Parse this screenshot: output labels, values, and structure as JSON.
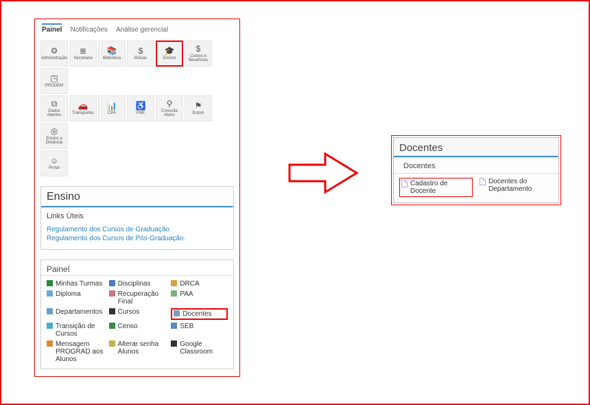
{
  "tabs": {
    "painel": "Painel",
    "notificacoes": "Notificações",
    "analise": "Análise gerencial"
  },
  "toolbar": {
    "row1": [
      {
        "label": "Administração",
        "glyph": "⚙"
      },
      {
        "label": "Secretaria",
        "glyph": "≣"
      },
      {
        "label": "Biblioteca",
        "glyph": "📚"
      },
      {
        "label": "Bolsas",
        "glyph": "$"
      },
      {
        "label": "Ensino",
        "glyph": "🎓",
        "hl": true
      },
      {
        "label": "Custos e Benefícios",
        "glyph": "$"
      },
      {
        "label": "PRODEM",
        "glyph": "◳"
      }
    ],
    "row2": [
      {
        "label": "Dados Abertos",
        "glyph": "⧉"
      },
      {
        "label": "Transportes",
        "glyph": "🚗"
      },
      {
        "label": "CPA",
        "glyph": "📊"
      },
      {
        "label": "PNE",
        "glyph": "♿"
      },
      {
        "label": "Consulta Aluno",
        "glyph": "⚲"
      },
      {
        "label": "Estom",
        "glyph": "⚑"
      },
      {
        "label": "Ensino a Distância",
        "glyph": "◎"
      }
    ],
    "row3": [
      {
        "label": "Portal",
        "glyph": "☺"
      }
    ]
  },
  "ensino": {
    "title": "Ensino",
    "links_title": "Links Úteis",
    "link1": "Regulamento dos Cursos de Graduação.",
    "link2": "Regulamento dos Cursos de Pós-Graduação."
  },
  "painel": {
    "title": "Painel",
    "items": [
      {
        "label": "Minhas Turmas",
        "color": "#2a8a3a"
      },
      {
        "label": "Disciplinas",
        "color": "#4a7abf"
      },
      {
        "label": "DRCA",
        "color": "#d9a441"
      },
      {
        "label": "Diploma",
        "color": "#6fa8d8"
      },
      {
        "label": "Recuperação Final",
        "color": "#c77a7a"
      },
      {
        "label": "PAA",
        "color": "#7ab37a"
      },
      {
        "label": "Departamentos",
        "color": "#6aa0c8"
      },
      {
        "label": "Cursos",
        "color": "#333333"
      },
      {
        "label": "Docentes",
        "color": "#7aa0b8",
        "hl": true
      },
      {
        "label": "Transição de Cursos",
        "color": "#4ab0c0"
      },
      {
        "label": "Censo",
        "color": "#3a8a4a"
      },
      {
        "label": "SEB",
        "color": "#5a8ac0"
      },
      {
        "label": "Mensagem PROGRAD aos Alunos",
        "color": "#e08a3a"
      },
      {
        "label": "Alterar senha Alunos",
        "color": "#c0b04a"
      },
      {
        "label": "Google Classroom",
        "color": "#333333"
      }
    ]
  },
  "docentes": {
    "title": "Docentes",
    "sub": "Docentes",
    "item1": "Cadastro de Docente",
    "item2": "Docentes do Departamento"
  }
}
